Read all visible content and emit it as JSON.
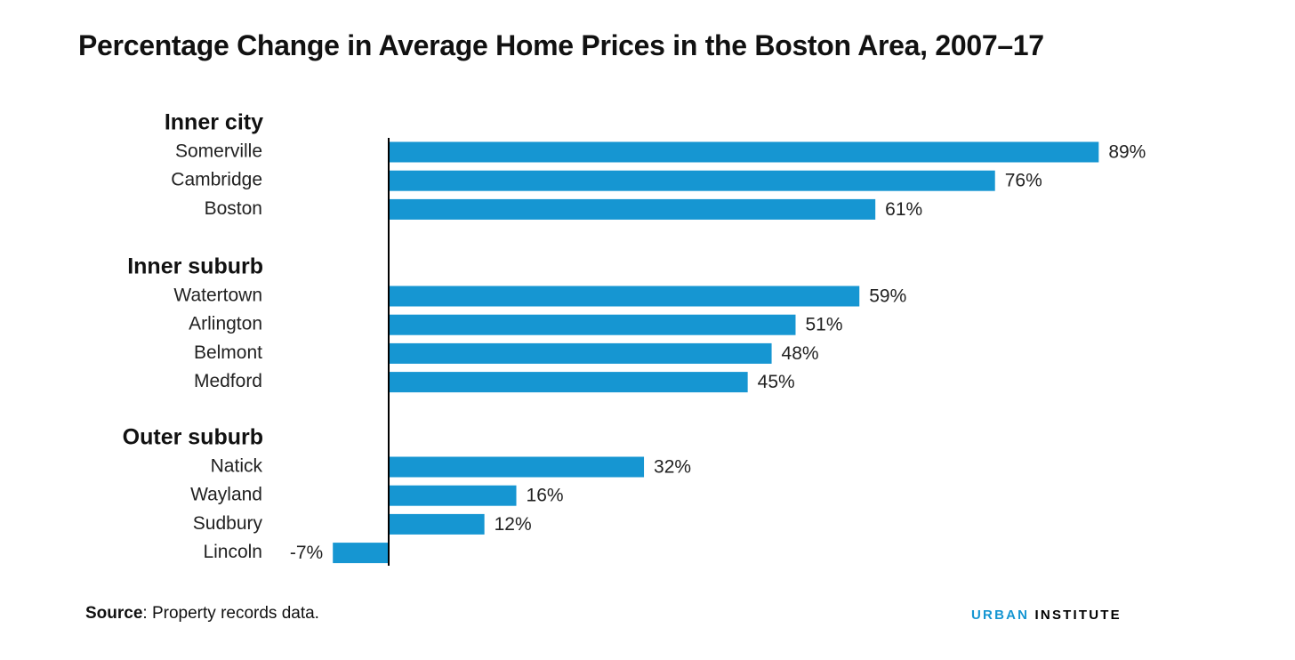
{
  "title": "Percentage Change in Average Home Prices in the Boston Area, 2007–17",
  "chart_data": {
    "type": "bar",
    "orientation": "horizontal",
    "value_suffix": "%",
    "bar_color": "#1696d2",
    "grid": false,
    "groups": [
      {
        "name": "Inner city",
        "categories": [
          "Somerville",
          "Cambridge",
          "Boston"
        ],
        "values": [
          89,
          76,
          61
        ]
      },
      {
        "name": "Inner suburb",
        "categories": [
          "Watertown",
          "Arlington",
          "Belmont",
          "Medford"
        ],
        "values": [
          59,
          51,
          48,
          45
        ]
      },
      {
        "name": "Outer suburb",
        "categories": [
          "Natick",
          "Wayland",
          "Sudbury",
          "Lincoln"
        ],
        "values": [
          32,
          16,
          12,
          -7
        ]
      }
    ]
  },
  "footer": {
    "source_label": "Source",
    "source_text": ": Property records data."
  },
  "brand": {
    "part1": "URBAN",
    "part2": " INSTITUTE"
  }
}
